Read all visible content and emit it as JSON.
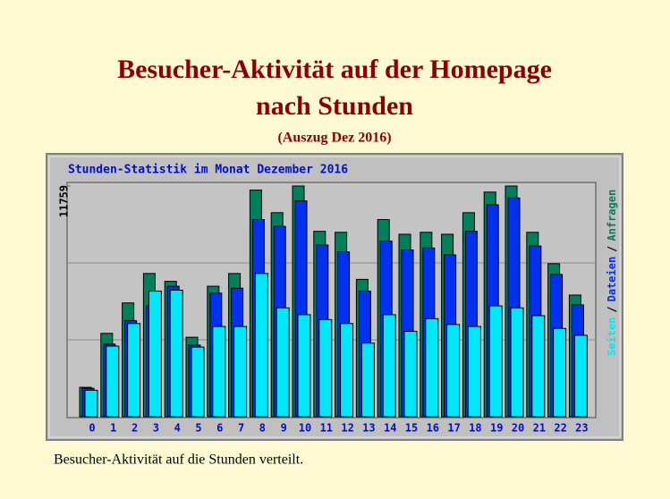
{
  "slide": {
    "title_lines": [
      "Besucher-Aktivität auf der Homepage",
      "nach Stunden"
    ],
    "subtitle": "(Auszug Dez 2016)",
    "caption": "Besucher-Aktivität auf die Stunden verteilt."
  },
  "chart_data": {
    "type": "bar",
    "title": "Stunden-Statistik im Monat Dezember 2016",
    "categories": [
      "0",
      "1",
      "2",
      "3",
      "4",
      "5",
      "6",
      "7",
      "8",
      "9",
      "10",
      "11",
      "12",
      "13",
      "14",
      "15",
      "16",
      "17",
      "18",
      "19",
      "20",
      "21",
      "22",
      "23"
    ],
    "series": [
      {
        "name": "Anfragen",
        "color": "#00805a",
        "values": [
          1500,
          4250,
          5800,
          7300,
          6900,
          4050,
          6650,
          7300,
          11550,
          10400,
          11759,
          9450,
          9400,
          7000,
          10050,
          9300,
          9400,
          9300,
          10400,
          11450,
          11759,
          9400,
          7800,
          6200
        ]
      },
      {
        "name": "Dateien",
        "color": "#0030f0",
        "values": [
          1450,
          3700,
          4900,
          5650,
          6650,
          3650,
          6300,
          6550,
          10050,
          9700,
          11000,
          8750,
          8400,
          6400,
          8950,
          8500,
          8600,
          8250,
          9450,
          10800,
          11150,
          8700,
          7250,
          5700
        ]
      },
      {
        "name": "Seiten",
        "color": "#00e8f8",
        "values": [
          1350,
          3600,
          4750,
          6400,
          6450,
          3550,
          4600,
          4600,
          7300,
          5550,
          5200,
          4950,
          4750,
          3750,
          5200,
          4350,
          5000,
          4700,
          4600,
          5650,
          5550,
          5150,
          4500,
          4150
        ]
      }
    ],
    "legend_separator": "/",
    "ylim": [
      0,
      11759
    ],
    "yticks": [
      11759
    ],
    "grid": true
  }
}
